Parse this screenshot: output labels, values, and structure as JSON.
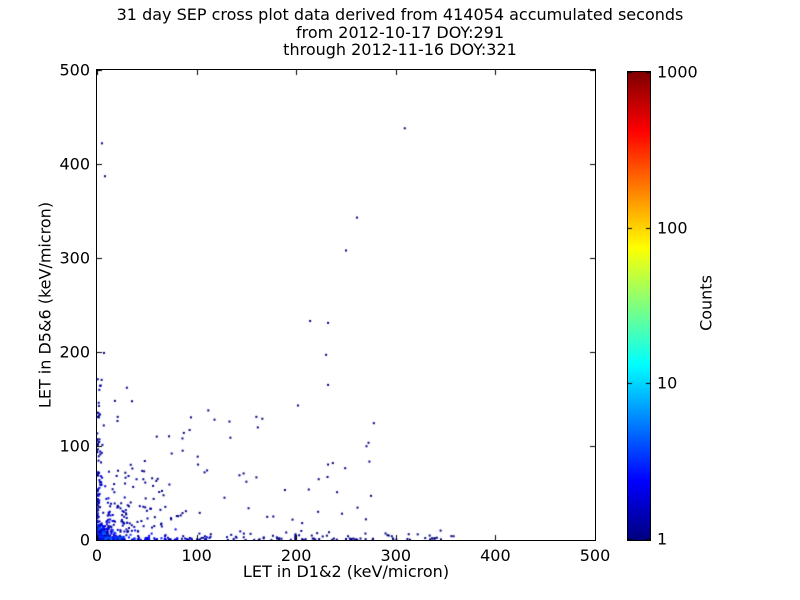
{
  "chart_data": {
    "type": "scatter",
    "title": "31 day SEP cross plot data derived from 414054 accumulated seconds",
    "subtitle1": "from 2012-10-17 DOY:291",
    "subtitle2": "through 2012-11-16 DOY:321",
    "xlabel": "LET in D1&2 (keV/micron)",
    "ylabel": "LET in D5&6 (keV/micron)",
    "xlim": [
      0,
      500
    ],
    "ylim": [
      0,
      500
    ],
    "xticks": [
      0,
      100,
      200,
      300,
      400,
      500
    ],
    "yticks": [
      0,
      100,
      200,
      300,
      400,
      500
    ],
    "grid": false,
    "colorbar": {
      "label": "Counts",
      "scale": "log",
      "min": 1,
      "max": 1000,
      "ticks": [
        1,
        10,
        100,
        1000
      ],
      "colormap": "jet"
    },
    "colors": {
      "background": "#ffffff",
      "axis": "#000000",
      "base_point": "#00007f"
    },
    "points": [
      [
        309,
        438,
        1
      ],
      [
        261,
        343,
        1
      ],
      [
        250,
        308,
        1
      ],
      [
        232,
        231,
        1
      ],
      [
        214,
        233,
        1
      ],
      [
        230,
        197,
        1
      ],
      [
        232,
        165,
        1
      ],
      [
        160,
        131,
        1
      ],
      [
        166,
        129,
        1
      ],
      [
        133,
        126,
        1
      ],
      [
        118,
        128,
        1
      ],
      [
        93,
        117,
        1
      ],
      [
        5,
        422,
        1
      ],
      [
        8,
        387,
        1
      ],
      [
        7,
        199,
        1
      ],
      [
        30,
        162,
        1
      ],
      [
        18,
        148,
        1
      ],
      [
        345,
        10,
        1
      ],
      [
        358,
        4,
        1
      ],
      [
        322,
        6,
        1
      ],
      [
        296,
        4,
        1
      ],
      [
        270,
        22,
        1
      ],
      [
        246,
        28,
        1
      ],
      [
        222,
        30,
        1
      ],
      [
        206,
        18,
        1
      ],
      [
        190,
        8,
        1
      ],
      [
        177,
        25,
        1
      ],
      [
        150,
        62,
        1
      ],
      [
        128,
        45,
        1
      ],
      [
        108,
        72,
        1
      ],
      [
        86,
        95,
        1
      ],
      [
        75,
        92,
        1
      ],
      [
        60,
        110,
        1
      ],
      [
        48,
        84,
        1
      ]
    ],
    "clusters": [
      {
        "type": "exp2d",
        "n": 650,
        "x_scale": 4,
        "y_scale": 4,
        "count_amp": 80,
        "count_falloff": 5
      },
      {
        "type": "power_strip_x",
        "n": 300,
        "x_max": 360,
        "x_pow": 3,
        "y_scale": 2.5,
        "count_amp": 6,
        "count_falloff": 50
      },
      {
        "type": "power_strip_y",
        "n": 135,
        "y_max": 175,
        "y_pow": 2.6,
        "x_scale": 2.5,
        "count_amp": 4,
        "count_falloff": 60
      },
      {
        "type": "fan",
        "n": 165,
        "r_max": 95,
        "r_pow": 2,
        "theta_min": 12,
        "theta_max": 78,
        "count_amp": 3,
        "count_falloff": 25
      },
      {
        "type": "uniform",
        "n": 45,
        "x_range": [
          12,
          285
        ],
        "y_range": [
          6,
          150
        ]
      }
    ]
  }
}
